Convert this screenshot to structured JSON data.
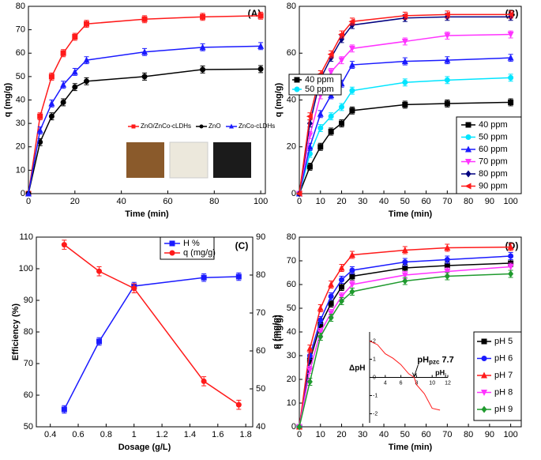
{
  "chart_data": [
    {
      "type": "line",
      "panel_label": "(A)",
      "xlabel": "Time (min)",
      "ylabel": "q (mg/g)",
      "x": [
        0,
        5,
        10,
        15,
        20,
        25,
        50,
        75,
        100
      ],
      "xlim": [
        0,
        102
      ],
      "ylim": [
        0,
        80
      ],
      "xticks": [
        0,
        20,
        40,
        60,
        80,
        100
      ],
      "yticks": [
        0,
        10,
        20,
        30,
        40,
        50,
        60,
        70,
        80
      ],
      "legend": "center",
      "series": [
        {
          "name": "ZnO/ZnCo-cLDHs",
          "color": "#ff1a1a",
          "marker": "square",
          "error": 1.5,
          "values": [
            0,
            33,
            50,
            60,
            67,
            72.5,
            74.5,
            75.5,
            76
          ]
        },
        {
          "name": "ZnO",
          "color": "#000000",
          "marker": "circle",
          "error": 1.5,
          "values": [
            0,
            22,
            33,
            39,
            45.5,
            48,
            50,
            53,
            53.2
          ]
        },
        {
          "name": "ZnCo-cLDHs",
          "color": "#1a1aff",
          "marker": "triangle",
          "error": 1.5,
          "values": [
            0,
            27,
            38.5,
            46.5,
            52,
            57,
            60.5,
            62.5,
            63
          ]
        }
      ]
    },
    {
      "type": "line",
      "panel_label": "(B)",
      "xlabel": "Time (min)",
      "ylabel": "q (mg/g)",
      "x": [
        0,
        5,
        10,
        15,
        20,
        25,
        50,
        70,
        100
      ],
      "xlim": [
        0,
        105
      ],
      "ylim": [
        0,
        80
      ],
      "xticks": [
        0,
        10,
        20,
        30,
        40,
        50,
        60,
        70,
        80,
        90,
        100
      ],
      "yticks": [
        0,
        20,
        40,
        60,
        80
      ],
      "legend": "lower right",
      "series": [
        {
          "name": "40 ppm",
          "color": "#000000",
          "marker": "square",
          "error": 1.5,
          "values": [
            0,
            11.5,
            20,
            26.5,
            30,
            35.5,
            38,
            38.5,
            39
          ]
        },
        {
          "name": "50 ppm",
          "color": "#00e5ff",
          "marker": "circle",
          "error": 1.5,
          "values": [
            0,
            17,
            28,
            33,
            37,
            44,
            47.5,
            48.5,
            49.5
          ]
        },
        {
          "name": "60 ppm",
          "color": "#1a1aff",
          "marker": "triangle",
          "error": 1.5,
          "values": [
            0,
            20,
            34,
            42,
            47,
            55,
            56.5,
            57,
            58
          ]
        },
        {
          "name": "70 ppm",
          "color": "#ff33ff",
          "marker": "triangle-down",
          "error": 1.5,
          "values": [
            0,
            25,
            42,
            52,
            57,
            62,
            65,
            67.5,
            68
          ]
        },
        {
          "name": "80 ppm",
          "color": "#000080",
          "marker": "diamond",
          "error": 1.5,
          "values": [
            0,
            30,
            49,
            58,
            66,
            72,
            75,
            75.5,
            75.5
          ]
        },
        {
          "name": "90 ppm",
          "color": "#ff1a1a",
          "marker": "triangle-left",
          "error": 1.5,
          "values": [
            0,
            33,
            51,
            59.5,
            68,
            73.5,
            76,
            76.5,
            76.5
          ]
        }
      ]
    },
    {
      "type": "line",
      "panel_label": "(C)",
      "xlabel": "Dosage (g/L)",
      "ylabel": "Efficiency (%)",
      "y2label": "q (mg/g)",
      "x": [
        0.5,
        0.75,
        1.0,
        1.5,
        1.75
      ],
      "xlim": [
        0.3,
        1.85
      ],
      "ylim": [
        50,
        110
      ],
      "y2lim": [
        40,
        90
      ],
      "xticks": [
        0.4,
        0.6,
        0.8,
        1.0,
        1.2,
        1.4,
        1.6,
        1.8
      ],
      "yticks": [
        50,
        60,
        70,
        80,
        90,
        100,
        110
      ],
      "y2ticks": [
        40,
        50,
        60,
        70,
        80,
        90
      ],
      "legend": "upper center",
      "series": [
        {
          "name": "H %",
          "color": "#1a1aff",
          "marker": "square",
          "error": 1.2,
          "values": [
            55.5,
            77,
            94.5,
            97.2,
            97.5
          ]
        },
        {
          "name": "q (mg/g)",
          "color": "#ff1a1a",
          "marker": "circle",
          "error": 1.2,
          "axis": "y2",
          "values": [
            88,
            81,
            76.5,
            52,
            45.8
          ]
        }
      ]
    },
    {
      "type": "line",
      "panel_label": "(D)",
      "xlabel": "Time (min)",
      "ylabel": "q (mg/g)",
      "x": [
        0,
        5,
        10,
        15,
        20,
        25,
        50,
        70,
        100
      ],
      "xlim": [
        0,
        105
      ],
      "ylim": [
        0,
        80
      ],
      "xticks": [
        0,
        10,
        20,
        30,
        40,
        50,
        60,
        70,
        80,
        90,
        100
      ],
      "yticks": [
        0,
        10,
        20,
        30,
        40,
        50,
        60,
        70,
        80
      ],
      "legend": "lower right",
      "series": [
        {
          "name": "pH 5",
          "color": "#000000",
          "marker": "square",
          "error": 1.5,
          "values": [
            0,
            28,
            43,
            52,
            59,
            63.5,
            67,
            68,
            69
          ]
        },
        {
          "name": "pH 6",
          "color": "#1a1aff",
          "marker": "circle",
          "error": 1.5,
          "values": [
            0,
            30,
            45,
            55,
            62,
            66,
            69.5,
            70.5,
            72
          ]
        },
        {
          "name": "pH 7",
          "color": "#ff1a1a",
          "marker": "triangle",
          "error": 1.5,
          "values": [
            0,
            33,
            50,
            60,
            67,
            72.5,
            74.5,
            75.5,
            75.8
          ]
        },
        {
          "name": "pH 8",
          "color": "#ff33ff",
          "marker": "triangle-down",
          "error": 1.5,
          "values": [
            0,
            24,
            40,
            48,
            55,
            60,
            64,
            65.5,
            67.5
          ]
        },
        {
          "name": "pH 9",
          "color": "#1f9a2e",
          "marker": "diamond",
          "error": 1.5,
          "values": [
            0,
            19,
            38,
            46,
            53,
            57,
            61.5,
            63.5,
            64.5
          ]
        }
      ],
      "inset": {
        "type": "line",
        "ylabel": "ΔpH",
        "xlabel": {
          "base": "pH",
          "sub": "i"
        },
        "annotation": {
          "base": "pH",
          "sub": "pzc",
          "value": 7.7
        },
        "color": "#ff1a1a",
        "x": [
          2,
          3,
          4,
          5,
          6,
          7,
          7.7,
          8,
          9,
          10,
          11
        ],
        "values": [
          2,
          1.8,
          1.3,
          1.05,
          0.7,
          0.2,
          0,
          -0.4,
          -0.9,
          -1.7,
          -1.8
        ],
        "xlim": [
          2,
          12
        ],
        "ylim": [
          -2.5,
          2.5
        ],
        "xticks": [
          4,
          6,
          8,
          10,
          12
        ],
        "yticks": [
          -2,
          -1,
          0,
          1,
          2
        ]
      }
    }
  ]
}
